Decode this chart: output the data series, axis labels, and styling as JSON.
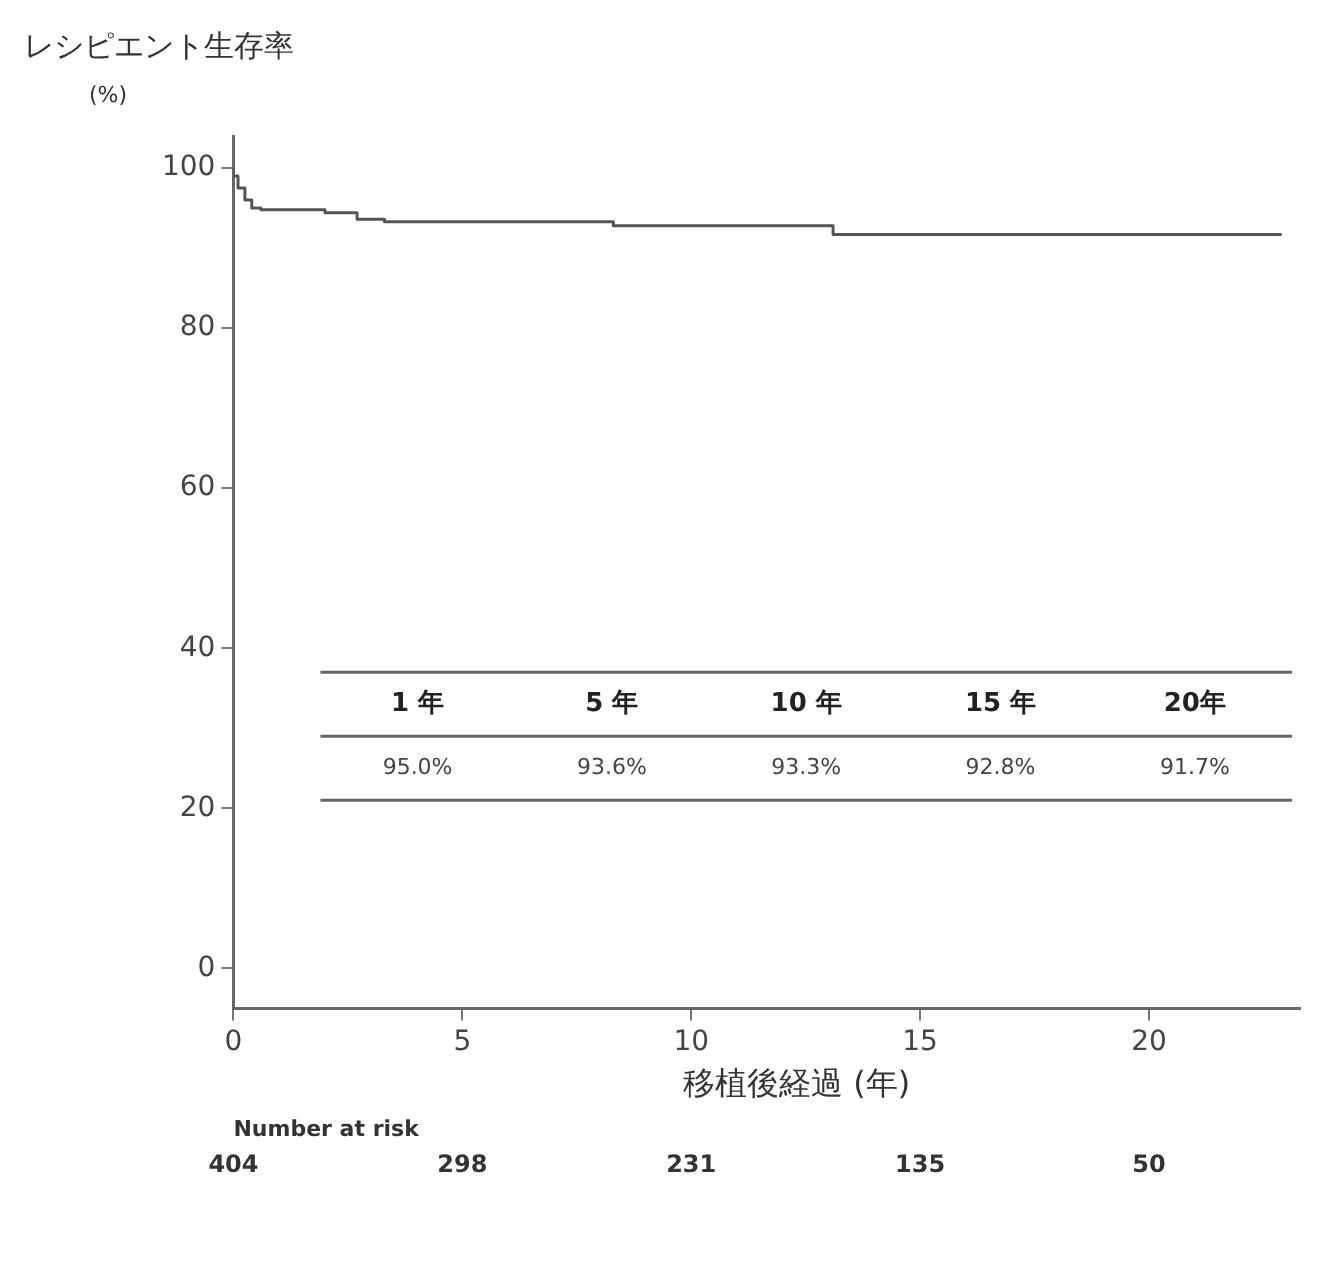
{
  "chart_data": {
    "type": "step",
    "title": "レシピエント生存率",
    "ylabel": "(%)",
    "xlabel": "移植後経過 (年)",
    "x": [
      0,
      0.1,
      0.25,
      0.4,
      0.6,
      2.0,
      2.7,
      3.3,
      8.3,
      13.1,
      17.5,
      22.9
    ],
    "series": [
      {
        "color": "#555555",
        "values": [
          100,
          99,
          97.5,
          96,
          95,
          94.8,
          94.4,
          93.6,
          93.3,
          92.8,
          91.7,
          91.7
        ]
      }
    ],
    "xlim": [
      0,
      23.3
    ],
    "xticks": [
      0,
      5,
      10,
      15,
      20
    ],
    "ylim": [
      -5,
      104
    ],
    "yticks": [
      0,
      20,
      40,
      60,
      80,
      100
    ],
    "grid": false,
    "legend": false,
    "marker": "none",
    "line_style": "solid",
    "annotations": [
      "1 年",
      "5 年",
      "10 年",
      "15 年",
      "20年",
      "95.0%",
      "93.6%",
      "93.3%",
      "92.8%",
      "91.7%",
      "Number at risk",
      "404",
      "298",
      "231",
      "135",
      "50"
    ]
  }
}
